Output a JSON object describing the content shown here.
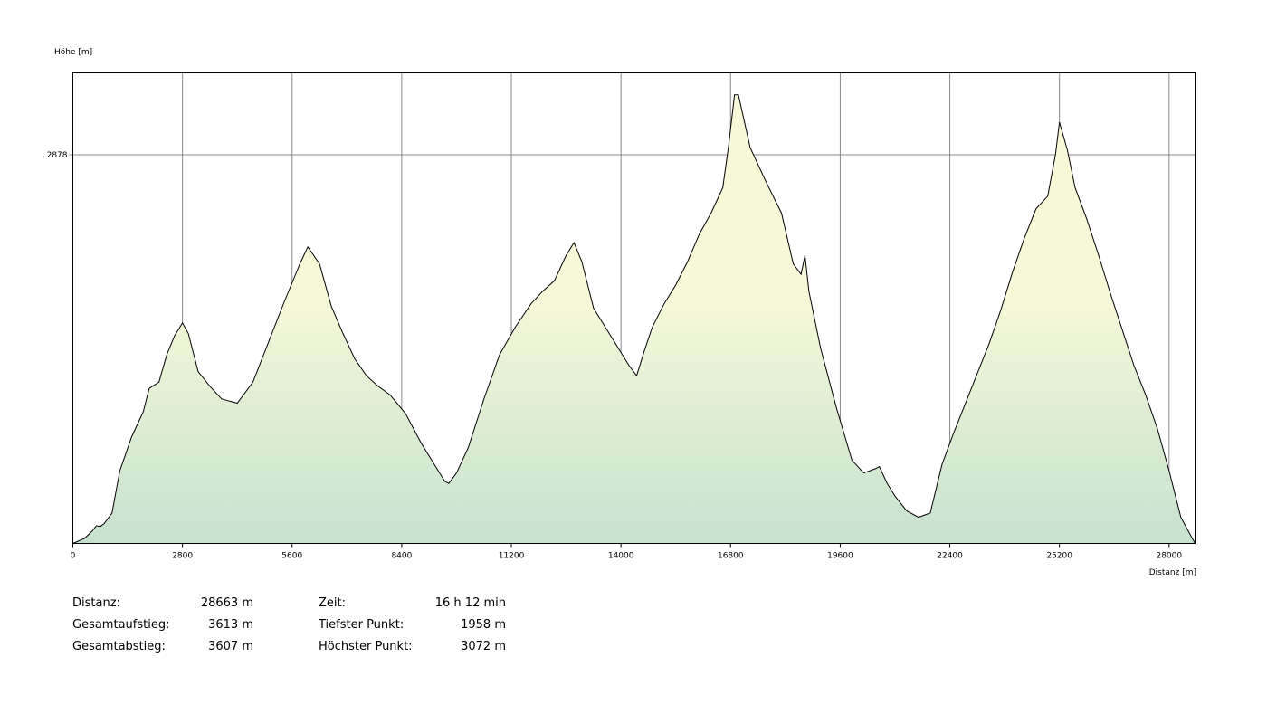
{
  "chart_data": {
    "type": "area",
    "ylabel": "Höhe [m]",
    "xlabel": "Distanz [m]",
    "xlim": [
      0,
      28663
    ],
    "ylim": [
      1958,
      3072
    ],
    "x_ticks": [
      0,
      2800,
      5600,
      8400,
      11200,
      14000,
      16800,
      19600,
      22400,
      25200,
      28000
    ],
    "y_ticks": [
      2878
    ],
    "grid": true,
    "colors": {
      "fill_top": "#f6f8d8",
      "fill_bottom": "#c6e2cf",
      "line": "#000000",
      "grid": "#888888"
    },
    "x": [
      0,
      300,
      500,
      600,
      700,
      800,
      1000,
      1200,
      1500,
      1800,
      1950,
      2200,
      2400,
      2600,
      2800,
      2950,
      3200,
      3500,
      3800,
      4200,
      4600,
      5000,
      5400,
      5800,
      6000,
      6300,
      6600,
      6900,
      7200,
      7500,
      7800,
      8100,
      8500,
      8900,
      9300,
      9500,
      9600,
      9800,
      10100,
      10500,
      10900,
      11300,
      11700,
      12000,
      12300,
      12600,
      12800,
      13000,
      13300,
      13700,
      14000,
      14200,
      14400,
      14600,
      14800,
      15100,
      15400,
      15700,
      16000,
      16300,
      16600,
      16750,
      16900,
      17000,
      17300,
      17700,
      18100,
      18400,
      18600,
      18700,
      18800,
      19100,
      19500,
      19900,
      20200,
      20500,
      20600,
      20800,
      21000,
      21300,
      21600,
      21900,
      22200,
      22500,
      22800,
      23100,
      23400,
      23700,
      24000,
      24300,
      24600,
      24900,
      25100,
      25200,
      25400,
      25600,
      25900,
      26200,
      26500,
      26800,
      27100,
      27400,
      27700,
      28000,
      28300,
      28663
    ],
    "y": [
      1958,
      1970,
      1988,
      2000,
      1998,
      2005,
      2030,
      2130,
      2210,
      2270,
      2325,
      2340,
      2405,
      2450,
      2480,
      2455,
      2365,
      2330,
      2300,
      2290,
      2340,
      2435,
      2530,
      2620,
      2660,
      2620,
      2520,
      2455,
      2395,
      2355,
      2330,
      2310,
      2265,
      2195,
      2135,
      2105,
      2100,
      2125,
      2185,
      2300,
      2405,
      2470,
      2525,
      2555,
      2580,
      2640,
      2670,
      2625,
      2515,
      2455,
      2410,
      2380,
      2355,
      2415,
      2470,
      2525,
      2570,
      2625,
      2690,
      2740,
      2800,
      2900,
      3020,
      3020,
      2895,
      2815,
      2740,
      2620,
      2595,
      2640,
      2555,
      2420,
      2280,
      2155,
      2125,
      2135,
      2140,
      2100,
      2070,
      2035,
      2020,
      2030,
      2145,
      2220,
      2290,
      2360,
      2430,
      2510,
      2600,
      2680,
      2750,
      2780,
      2880,
      2955,
      2890,
      2800,
      2725,
      2640,
      2550,
      2465,
      2380,
      2310,
      2230,
      2130,
      2020,
      1958
    ]
  },
  "stats": {
    "distance": {
      "label": "Distanz:",
      "value": "28663 m"
    },
    "ascent": {
      "label": "Gesamtaufstieg:",
      "value": "3613 m"
    },
    "descent": {
      "label": "Gesamtabstieg:",
      "value": "3607 m"
    },
    "time": {
      "label": "Zeit:",
      "value": "16 h 12 min"
    },
    "lowest": {
      "label": "Tiefster Punkt:",
      "value": "1958 m"
    },
    "highest": {
      "label": "Höchster Punkt:",
      "value": "3072 m"
    }
  }
}
